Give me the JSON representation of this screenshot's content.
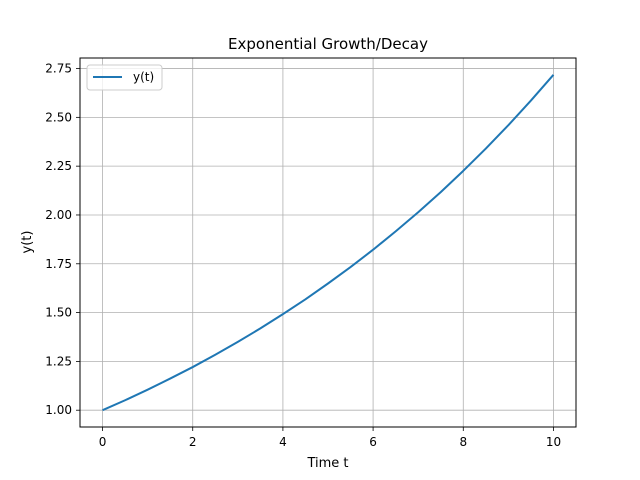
{
  "chart_data": {
    "type": "line",
    "title": "Exponential Growth/Decay",
    "xlabel": "Time t",
    "ylabel": "y(t)",
    "xlim": [
      -0.5,
      10.5
    ],
    "ylim": [
      0.914,
      2.804
    ],
    "xticks": [
      0,
      2,
      4,
      6,
      8,
      10
    ],
    "xtick_labels": [
      "0",
      "2",
      "4",
      "6",
      "8",
      "10"
    ],
    "yticks": [
      1.0,
      1.25,
      1.5,
      1.75,
      2.0,
      2.25,
      2.5,
      2.75
    ],
    "ytick_labels": [
      "1.00",
      "1.25",
      "1.50",
      "1.75",
      "2.00",
      "2.25",
      "2.50",
      "2.75"
    ],
    "grid": true,
    "legend_position": "top-left",
    "series": [
      {
        "name": "y(t)",
        "color": "#1f77b4",
        "x": [
          0,
          0.5,
          1,
          1.5,
          2,
          2.5,
          3,
          3.5,
          4,
          4.5,
          5,
          5.5,
          6,
          6.5,
          7,
          7.5,
          8,
          8.5,
          9,
          9.5,
          10
        ],
        "y": [
          1.0,
          1.051,
          1.105,
          1.162,
          1.221,
          1.284,
          1.35,
          1.419,
          1.492,
          1.568,
          1.649,
          1.733,
          1.822,
          1.916,
          2.014,
          2.117,
          2.226,
          2.34,
          2.46,
          2.586,
          2.718
        ]
      }
    ]
  }
}
